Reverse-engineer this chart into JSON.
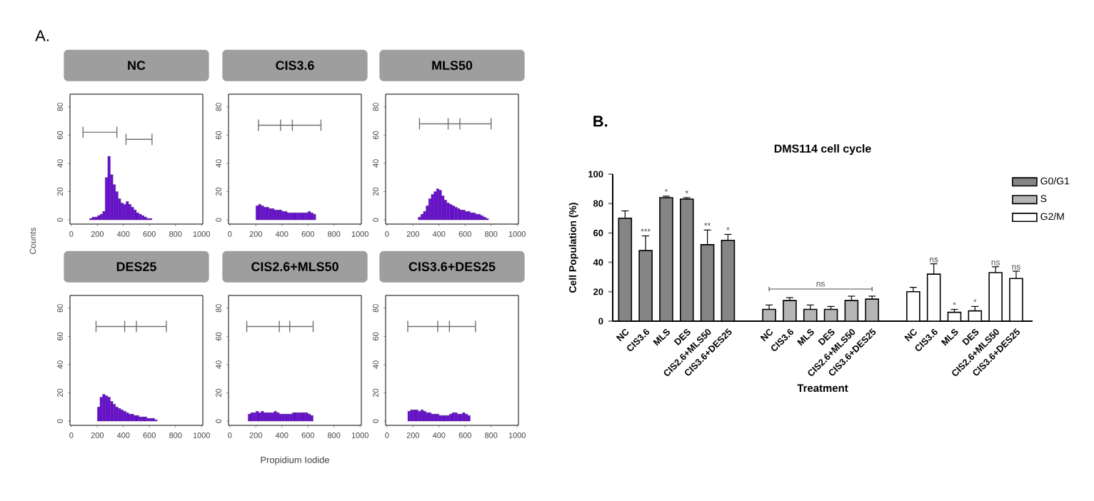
{
  "chart_data": [
    {
      "type": "histogram",
      "title": "NC",
      "annotations": [
        "A."
      ],
      "bins": [
        140,
        160,
        180,
        200,
        220,
        240,
        260,
        280,
        300,
        320,
        340,
        360,
        380,
        400,
        420,
        440,
        460,
        480,
        500,
        520,
        540,
        560,
        580,
        600,
        620
      ],
      "values": [
        1,
        2,
        2,
        3,
        4,
        6,
        30,
        45,
        32,
        25,
        20,
        15,
        12,
        11,
        13,
        11,
        9,
        7,
        5,
        4,
        3,
        2,
        1,
        1
      ],
      "color": "#6a0dd8",
      "series": [
        {
          "type": "line",
          "color": "#707070",
          "x": [
            90,
            350
          ],
          "values": [
            62,
            62
          ],
          "errors": [
            4,
            4
          ]
        },
        {
          "type": "line",
          "color": "#707070",
          "x": [
            420,
            620
          ],
          "values": [
            57,
            57
          ],
          "errors": [
            4,
            4
          ]
        }
      ],
      "xlim": [
        -10,
        1010
      ],
      "ylim": [
        -3,
        89
      ],
      "xticks": [
        0,
        200,
        400,
        600,
        800,
        1000
      ],
      "yticks": [
        0,
        20,
        40,
        60,
        80
      ]
    },
    {
      "type": "histogram",
      "title": "CIS3.6",
      "bins": [
        200,
        220,
        240,
        260,
        280,
        300,
        320,
        340,
        360,
        380,
        400,
        420,
        440,
        460,
        480,
        500,
        520,
        540,
        560,
        580,
        600,
        620,
        640,
        660
      ],
      "values": [
        10,
        11,
        10,
        9,
        9,
        8,
        8,
        7,
        7,
        7,
        6,
        6,
        5,
        5,
        5,
        5,
        5,
        5,
        5,
        5,
        6,
        5,
        4
      ],
      "color": "#6a0dd8",
      "series": [
        {
          "type": "line",
          "color": "#707070",
          "x": [
            220,
            390,
            480,
            700
          ],
          "values": [
            67,
            67,
            67,
            67
          ],
          "errors": [
            4,
            4,
            4,
            4
          ]
        }
      ],
      "xlim": [
        -10,
        1010
      ],
      "ylim": [
        -3,
        89
      ],
      "xticks": [
        0,
        200,
        400,
        600,
        800,
        1000
      ],
      "yticks": [
        0,
        20,
        40,
        60,
        80
      ]
    },
    {
      "type": "histogram",
      "title": "MLS50",
      "bins": [
        240,
        260,
        280,
        300,
        320,
        340,
        360,
        380,
        400,
        420,
        440,
        460,
        480,
        500,
        520,
        540,
        560,
        580,
        600,
        620,
        640,
        660,
        680,
        700,
        720,
        740,
        760,
        780
      ],
      "values": [
        2,
        4,
        6,
        10,
        15,
        18,
        20,
        22,
        21,
        17,
        14,
        12,
        11,
        10,
        9,
        8,
        7,
        7,
        6,
        6,
        5,
        5,
        4,
        4,
        3,
        2,
        1
      ],
      "color": "#6a0dd8",
      "series": [
        {
          "type": "line",
          "color": "#707070",
          "x": [
            250,
            470,
            560,
            800
          ],
          "values": [
            68,
            68,
            68,
            68
          ],
          "errors": [
            4,
            4,
            4,
            4
          ]
        }
      ],
      "xlim": [
        -10,
        1010
      ],
      "ylim": [
        -3,
        89
      ],
      "xticks": [
        0,
        200,
        400,
        600,
        800,
        1000
      ],
      "yticks": [
        0,
        20,
        40,
        60,
        80
      ]
    },
    {
      "type": "histogram",
      "title": "DES25",
      "ylabel": "Counts",
      "bins": [
        200,
        220,
        240,
        260,
        280,
        300,
        320,
        340,
        360,
        380,
        400,
        420,
        440,
        460,
        480,
        500,
        520,
        540,
        560,
        580,
        600,
        620,
        640,
        660
      ],
      "values": [
        10,
        17,
        19,
        18,
        17,
        14,
        12,
        10,
        9,
        8,
        7,
        6,
        5,
        5,
        4,
        4,
        3,
        3,
        3,
        2,
        2,
        2,
        1
      ],
      "color": "#6a0dd8",
      "series": [
        {
          "type": "line",
          "color": "#707070",
          "x": [
            190,
            410,
            500,
            730
          ],
          "values": [
            67,
            67,
            67,
            67
          ],
          "errors": [
            4,
            4,
            4,
            4
          ]
        }
      ],
      "xlim": [
        -10,
        1010
      ],
      "ylim": [
        -3,
        89
      ],
      "xticks": [
        0,
        200,
        400,
        600,
        800,
        1000
      ],
      "yticks": [
        0,
        20,
        40,
        60,
        80
      ]
    },
    {
      "type": "histogram",
      "title": "CIS2.6+MLS50",
      "xlabel": "Propidium Iodide",
      "bins": [
        140,
        160,
        180,
        200,
        220,
        240,
        260,
        280,
        300,
        320,
        340,
        360,
        380,
        400,
        420,
        440,
        460,
        480,
        500,
        520,
        540,
        560,
        580,
        600,
        620,
        640
      ],
      "values": [
        5,
        6,
        6,
        7,
        6,
        7,
        6,
        6,
        6,
        6,
        7,
        6,
        5,
        5,
        5,
        5,
        5,
        6,
        6,
        6,
        6,
        6,
        6,
        5,
        4
      ],
      "color": "#6a0dd8",
      "series": [
        {
          "type": "line",
          "color": "#707070",
          "x": [
            130,
            380,
            460,
            640
          ],
          "values": [
            67,
            67,
            67,
            67
          ],
          "errors": [
            4,
            4,
            4,
            4
          ]
        }
      ],
      "xlim": [
        -10,
        1010
      ],
      "ylim": [
        -3,
        89
      ],
      "xticks": [
        0,
        200,
        400,
        600,
        800,
        1000
      ],
      "yticks": [
        0,
        20,
        40,
        60,
        80
      ]
    },
    {
      "type": "histogram",
      "title": "CIS3.6+DES25",
      "bins": [
        160,
        180,
        200,
        220,
        240,
        260,
        280,
        300,
        320,
        340,
        360,
        380,
        400,
        420,
        440,
        460,
        480,
        500,
        520,
        540,
        560,
        580,
        600,
        620,
        640
      ],
      "values": [
        7,
        8,
        8,
        8,
        7,
        8,
        7,
        6,
        6,
        5,
        5,
        5,
        4,
        4,
        4,
        4,
        5,
        6,
        6,
        5,
        5,
        6,
        5,
        4
      ],
      "color": "#6a0dd8",
      "series": [
        {
          "type": "line",
          "color": "#707070",
          "x": [
            160,
            390,
            480,
            680
          ],
          "values": [
            67,
            67,
            67,
            67
          ],
          "errors": [
            4,
            4,
            4,
            4
          ]
        }
      ],
      "xlim": [
        -10,
        1010
      ],
      "ylim": [
        -3,
        89
      ],
      "xticks": [
        0,
        200,
        400,
        600,
        800,
        1000
      ],
      "yticks": [
        0,
        20,
        40,
        60,
        80
      ]
    },
    {
      "type": "bar",
      "title": "DMS114 cell cycle",
      "xlabel": "Treatment",
      "ylabel": "Cell Population (%)",
      "annotations": [
        "B.",
        "ns"
      ],
      "categories": [
        "NC",
        "CIS3.6",
        "MLS",
        "DES",
        "CIS2.6+MLS50",
        "CIS3.6+DES25",
        null,
        "NC",
        "CIS3.6",
        "MLS",
        "DES",
        "CIS2.6+MLS50",
        "CIS3.6+DES25",
        null,
        "NC",
        "CIS3.6",
        "MLS",
        "DES",
        "CIS2.6+MLS50",
        "CIS3.6+DES25"
      ],
      "series": [
        {
          "name": "G0/G1",
          "color": "#858585",
          "values": [
            70,
            48,
            84,
            83,
            52,
            55,
            null,
            null,
            null,
            null,
            null,
            null,
            null,
            null,
            null,
            null,
            null,
            null,
            null,
            null
          ],
          "errors": [
            5,
            10,
            1,
            1,
            10,
            4,
            null,
            null,
            null,
            null,
            null,
            null,
            null,
            null,
            null,
            null,
            null,
            null,
            null,
            null
          ],
          "value_labels": [
            null,
            "***",
            "*",
            "*",
            "**",
            "*",
            null,
            null,
            null,
            null,
            null,
            null,
            null,
            null,
            null,
            null,
            null,
            null,
            null,
            null
          ]
        },
        {
          "name": "S",
          "color": "#b5b5b5",
          "values": [
            null,
            null,
            null,
            null,
            null,
            null,
            null,
            8,
            14,
            8,
            8,
            14,
            15,
            null,
            null,
            null,
            null,
            null,
            null,
            null
          ],
          "errors": [
            null,
            null,
            null,
            null,
            null,
            null,
            null,
            3,
            2,
            3,
            2,
            3,
            2,
            null,
            null,
            null,
            null,
            null,
            null,
            null
          ]
        },
        {
          "name": "G2/M",
          "color": "#ffffff",
          "values": [
            null,
            null,
            null,
            null,
            null,
            null,
            null,
            null,
            null,
            null,
            null,
            null,
            null,
            null,
            20,
            32,
            6,
            7,
            33,
            29
          ],
          "errors": [
            null,
            null,
            null,
            null,
            null,
            null,
            null,
            null,
            null,
            null,
            null,
            null,
            null,
            null,
            3,
            7,
            2,
            3,
            4,
            5
          ],
          "value_labels": [
            null,
            null,
            null,
            null,
            null,
            null,
            null,
            null,
            null,
            null,
            null,
            null,
            null,
            null,
            null,
            "ns",
            "*",
            "*",
            "ns",
            "ns"
          ]
        }
      ],
      "ylim": [
        0,
        100
      ],
      "yticks": [
        0,
        20,
        40,
        60,
        80,
        100
      ],
      "legend": "top right"
    }
  ]
}
